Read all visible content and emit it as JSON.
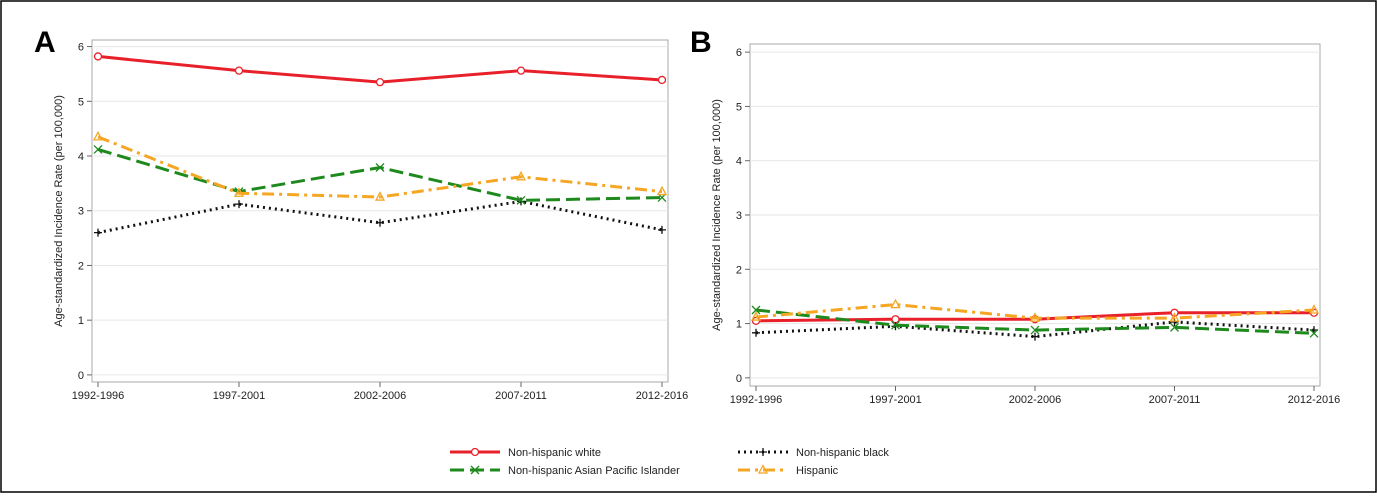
{
  "chart_data": [
    {
      "type": "line",
      "panel": "A",
      "ylabel": "Age-standardized Incidence Rate (per 100,000)",
      "categories": [
        "1992-1996",
        "1997-2001",
        "2002-2006",
        "2007-2011",
        "2012-2016"
      ],
      "ylim": [
        -0.13,
        6.12
      ],
      "yticks": [
        0,
        1,
        2,
        3,
        4,
        5,
        6
      ],
      "grid": true,
      "series": [
        {
          "name": "Non-hispanic white",
          "color": "#e8202a",
          "linestyle": "solid",
          "marker": "circle",
          "values": [
            5.82,
            5.56,
            5.35,
            5.56,
            5.39
          ]
        },
        {
          "name": "Non-hispanic black",
          "color": "#111111",
          "linestyle": "dotted",
          "marker": "plus",
          "values": [
            2.6,
            3.12,
            2.78,
            3.17,
            2.65
          ]
        },
        {
          "name": "Non-hispanic Asian Pacific Islander",
          "color": "#1e8a1e",
          "linestyle": "dashed",
          "marker": "x",
          "values": [
            4.12,
            3.35,
            3.79,
            3.19,
            3.24
          ]
        },
        {
          "name": "Hispanic",
          "color": "#f5a623",
          "linestyle": "dashdot",
          "marker": "triangle",
          "values": [
            4.35,
            3.32,
            3.25,
            3.62,
            3.35
          ]
        }
      ]
    },
    {
      "type": "line",
      "panel": "B",
      "ylabel": "Age-standardized Incidence Rate (per 100,000)",
      "categories": [
        "1992-1996",
        "1997-2001",
        "2002-2006",
        "2007-2011",
        "2012-2016"
      ],
      "ylim": [
        -0.15,
        6.15
      ],
      "yticks": [
        0,
        1,
        2,
        3,
        4,
        5,
        6
      ],
      "grid": true,
      "series": [
        {
          "color": "#e8202a",
          "linestyle": "solid",
          "marker": "circle",
          "values": [
            1.05,
            1.08,
            1.08,
            1.2,
            1.2
          ]
        },
        {
          "color": "#111111",
          "linestyle": "dotted",
          "marker": "plus",
          "values": [
            0.83,
            0.95,
            0.76,
            1.03,
            0.88
          ]
        },
        {
          "color": "#1e8a1e",
          "linestyle": "dashed",
          "marker": "x",
          "values": [
            1.25,
            0.97,
            0.88,
            0.93,
            0.82
          ]
        },
        {
          "color": "#f5a623",
          "linestyle": "dashdot",
          "marker": "triangle",
          "values": [
            1.12,
            1.35,
            1.1,
            1.1,
            1.25
          ]
        }
      ]
    }
  ]
}
